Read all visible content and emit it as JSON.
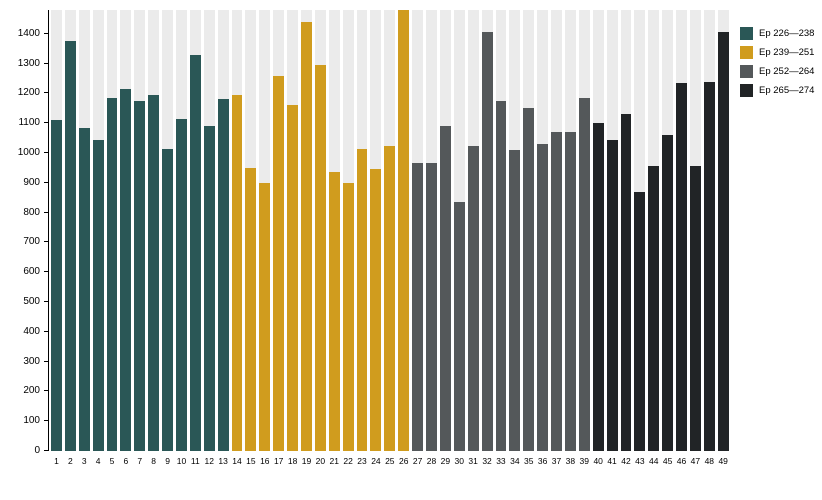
{
  "chart_data": {
    "type": "bar",
    "title": "",
    "xlabel": "",
    "ylabel": "",
    "ylim": [
      0,
      1480
    ],
    "yticks": [
      0,
      100,
      200,
      300,
      400,
      500,
      600,
      700,
      800,
      900,
      1000,
      1100,
      1200,
      1300,
      1400
    ],
    "grid": "column-stripes",
    "stripe_color": "#ebebeb",
    "axis_color": "#000000",
    "legend_position": "top-right",
    "categories": [
      "1",
      "2",
      "3",
      "4",
      "5",
      "6",
      "7",
      "8",
      "9",
      "10",
      "11",
      "12",
      "13",
      "14",
      "15",
      "16",
      "17",
      "18",
      "19",
      "20",
      "21",
      "22",
      "23",
      "24",
      "25",
      "26",
      "27",
      "28",
      "29",
      "30",
      "31",
      "32",
      "33",
      "34",
      "35",
      "36",
      "37",
      "38",
      "39",
      "40",
      "41",
      "42",
      "43",
      "44",
      "45",
      "46",
      "47",
      "48",
      "49"
    ],
    "values": [
      1110,
      1375,
      1085,
      1045,
      1185,
      1215,
      1175,
      1195,
      1015,
      1115,
      1330,
      1090,
      1180,
      1195,
      950,
      900,
      1260,
      1160,
      1440,
      1295,
      935,
      900,
      1015,
      945,
      1025,
      1480,
      965,
      965,
      1090,
      835,
      1025,
      1405,
      1175,
      1010,
      1150,
      1030,
      1070,
      1070,
      1185,
      1100,
      1045,
      1130,
      870,
      955,
      1060,
      1235,
      955,
      1240,
      1405
    ],
    "groups": [
      {
        "label": "Ep 226—238",
        "color": "#2a5756",
        "start": 1,
        "end": 13
      },
      {
        "label": "Ep 239—251",
        "color": "#d09c1e",
        "start": 14,
        "end": 26
      },
      {
        "label": "Ep 252—264",
        "color": "#54585a",
        "start": 27,
        "end": 39
      },
      {
        "label": "Ep 265—274",
        "color": "#212426",
        "start": 40,
        "end": 49
      }
    ]
  }
}
